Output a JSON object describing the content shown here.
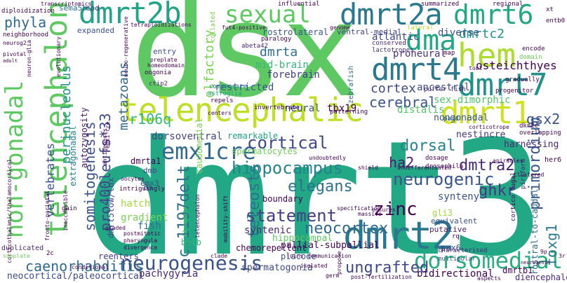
{
  "words": [
    {
      "text": "dmrt3",
      "color": "#22a884"
    },
    {
      "text": "dsx",
      "color": "#5ec962"
    },
    {
      "text": "telencephalic",
      "color": "#bddf26"
    },
    {
      "text": "dmrt2b",
      "color": "#20a386"
    },
    {
      "text": "dmrt2a",
      "color": "#2a788e"
    },
    {
      "text": "dmrt4",
      "color": "#2a788e"
    },
    {
      "text": "dmrt7",
      "color": "#21918c"
    },
    {
      "text": "dmrt1",
      "color": "#cde11d"
    },
    {
      "text": "dmrt2",
      "color": "#2a788e"
    },
    {
      "text": "dmrt6",
      "color": "#22a884"
    },
    {
      "text": "hem",
      "color": "#addc30"
    },
    {
      "text": "dma",
      "color": "#22a884"
    },
    {
      "text": "sexual",
      "color": "#5ec962"
    },
    {
      "text": "telencephalon",
      "color": "#5ec962"
    },
    {
      "text": "non-gonadal",
      "color": "#5ec962"
    },
    {
      "text": "emx1cre",
      "color": "#31688e"
    },
    {
      "text": "neurogenesis",
      "color": "#3b528b"
    },
    {
      "text": "dorsomedial",
      "color": "#29af7f"
    },
    {
      "text": "caenorhabditis",
      "color": "#31688e"
    },
    {
      "text": "hippocampus",
      "color": "#26828e"
    },
    {
      "text": "cortical",
      "color": "#3e4989"
    },
    {
      "text": "dorsal",
      "color": "#26828e"
    },
    {
      "text": "ungrafted",
      "color": "#3e4989"
    },
    {
      "text": "zinc",
      "color": "#440154"
    },
    {
      "text": "statement",
      "color": "#433e85"
    },
    {
      "text": "neurogenic",
      "color": "#39568c"
    },
    {
      "text": "elegans",
      "color": "#2c728e"
    },
    {
      "text": "teleosts",
      "color": "#2c728e"
    },
    {
      "text": "neocortex",
      "color": "#31688e"
    },
    {
      "text": "c.1197delt",
      "color": "#2d708e"
    },
    {
      "text": "primordium",
      "color": "#39568c"
    },
    {
      "text": "dmtra2",
      "color": "#482878"
    },
    {
      "text": "ghkr",
      "color": "#443983"
    },
    {
      "text": "gsx2",
      "color": "#3b528b"
    },
    {
      "text": "foxg1",
      "color": "#2a788e"
    },
    {
      "text": "cerebral",
      "color": "#3b528b"
    },
    {
      "text": "cortex",
      "color": "#3e4989"
    },
    {
      "text": "ha2",
      "color": "#481f70"
    },
    {
      "text": "pro400leufs*33",
      "color": "#3e4989"
    },
    {
      "text": "somitogenesis",
      "color": "#3b528b"
    },
    {
      "text": "metazoans",
      "color": "#31688e"
    },
    {
      "text": "olfactory",
      "color": "#7ad151"
    },
    {
      "text": "r106q",
      "color": "#35b779"
    },
    {
      "text": "vertebrates",
      "color": "#3b528b"
    },
    {
      "text": "perinucleolus",
      "color": "#21918c"
    },
    {
      "text": "phyla",
      "color": "#31688e"
    },
    {
      "text": "dmrta",
      "color": "#2d708e"
    },
    {
      "text": "dmrtc2",
      "color": "#21918c"
    },
    {
      "text": "restricted",
      "color": "#3b528b"
    },
    {
      "text": "mid-brain",
      "color": "#35b779"
    },
    {
      "text": "forebrain",
      "color": "#433e85"
    },
    {
      "text": "osteichthyes",
      "color": "#440154"
    },
    {
      "text": "proneural",
      "color": "#46327e"
    },
    {
      "text": "atlantic",
      "color": "#3e4989"
    },
    {
      "text": "diverse",
      "color": "#3b528b"
    },
    {
      "text": "ancestral",
      "color": "#3b528b"
    },
    {
      "text": "sex-dimorphic",
      "color": "#52c569"
    },
    {
      "text": "nongonadal",
      "color": "#3b528b"
    },
    {
      "text": "harnessing",
      "color": "#482878"
    },
    {
      "text": "nestincre",
      "color": "#46327e"
    },
    {
      "text": "tbx19",
      "color": "#440154"
    },
    {
      "text": "neural",
      "color": "#3b528b"
    },
    {
      "text": "distalis",
      "color": "#52c569"
    },
    {
      "text": "dorsoventral",
      "color": "#414487"
    },
    {
      "text": "remarkable",
      "color": "#1f9e89"
    },
    {
      "text": "dmrta1",
      "color": "#440154"
    },
    {
      "text": "spermatocytes",
      "color": "#6ece58"
    },
    {
      "text": "gradient",
      "color": "#7ad151"
    },
    {
      "text": "fish",
      "color": "#2d708e"
    },
    {
      "text": "hatch",
      "color": "#a0da39"
    },
    {
      "text": "autozygosity",
      "color": "#48186a"
    },
    {
      "text": "syntenic",
      "color": "#482878"
    },
    {
      "text": "pallial-subpallial",
      "color": "#440154"
    },
    {
      "text": "hippocampal",
      "color": "#5ec962"
    },
    {
      "text": "boundary",
      "color": "#440154"
    },
    {
      "text": "synteny",
      "color": "#3b528b"
    },
    {
      "text": "chemorepellent",
      "color": "#440154"
    },
    {
      "text": "placode",
      "color": "#3b528b"
    },
    {
      "text": "bulb",
      "color": "#35b779"
    },
    {
      "text": "reenters",
      "color": "#433e85"
    },
    {
      "text": "spermatogonia",
      "color": "#3e4989"
    },
    {
      "text": "pachygyria",
      "color": "#482878"
    },
    {
      "text": "bidirectional",
      "color": "#440154"
    },
    {
      "text": "neocortical/paleocortical",
      "color": "#3e4989"
    },
    {
      "text": "rostral-to-caudal",
      "color": "#31688e"
    },
    {
      "text": "dmrtb1",
      "color": "#440154"
    },
    {
      "text": "diencephalon",
      "color": "#482878"
    },
    {
      "text": "pax6",
      "color": "#3e4989"
    },
    {
      "text": "gli3",
      "color": "#a0da39"
    },
    {
      "text": "equivalent",
      "color": "#3b528b"
    },
    {
      "text": "putative",
      "color": "#481f70"
    },
    {
      "text": "emx3",
      "color": "#3b528b"
    },
    {
      "text": "dmb",
      "color": "#3b528b"
    },
    {
      "text": "8a",
      "color": "#3b528b"
    },
    {
      "text": "dmrt5low/lox",
      "color": "#3e4989"
    },
    {
      "text": "extragonadal",
      "color": "#26828e"
    },
    {
      "text": "duplicated",
      "color": "#481f70"
    },
    {
      "text": "entry",
      "color": "#3b528b"
    },
    {
      "text": "expanded",
      "color": "#3b528b"
    },
    {
      "text": "sema5b",
      "color": "#2d708e"
    },
    {
      "text": "cod",
      "color": "#46327e"
    },
    {
      "text": "neighborhood",
      "color": "#440154"
    },
    {
      "text": "rostrolateral",
      "color": "#3b528b"
    },
    {
      "text": "ventral-medial",
      "color": "#414487"
    },
    {
      "text": "paralogy",
      "color": "#440154"
    },
    {
      "text": "lateral",
      "color": "#b5de2b"
    },
    {
      "text": "conserved",
      "color": "#482878"
    },
    {
      "text": "lactotropes",
      "color": "#46327e"
    },
    {
      "text": "caudomedial",
      "color": "#7ad151"
    },
    {
      "text": "compensate",
      "color": "#26828e"
    },
    {
      "text": "astroglia",
      "color": "#1f9e89"
    },
    {
      "text": "zebrafish",
      "color": "#31688e"
    },
    {
      "text": "puffer fish",
      "color": "#482878"
    },
    {
      "text": "characterised",
      "color": "#482878"
    },
    {
      "text": "multipolar",
      "color": "#3b528b"
    },
    {
      "text": "cortico fugal",
      "color": "#440154"
    },
    {
      "text": "piriform",
      "color": "#481f70"
    },
    {
      "text": "dosage",
      "color": "#440154"
    },
    {
      "text": "drosophila",
      "color": "#440154"
    },
    {
      "text": "paid",
      "color": "#31688e"
    },
    {
      "text": "dkn2c",
      "color": "#440154"
    },
    {
      "text": "her6",
      "color": "#440154"
    },
    {
      "text": "entb0",
      "color": "#440154"
    },
    {
      "text": "regional",
      "color": "#440154"
    },
    {
      "text": "xt",
      "color": "#440154"
    },
    {
      "text": "encode",
      "color": "#440154"
    },
    {
      "text": "domain",
      "color": "#6ece58"
    },
    {
      "text": "ctip2",
      "color": "#482878"
    },
    {
      "text": "abeta42",
      "color": "#482878"
    },
    {
      "text": "oogonia",
      "color": "#440154"
    },
    {
      "text": "genome",
      "color": "#440154"
    },
    {
      "text": "influential",
      "color": "#440154"
    },
    {
      "text": "summarized",
      "color": "#440154"
    },
    {
      "text": "transcriptomics",
      "color": "#440154"
    },
    {
      "text": "diploidization",
      "color": "#440154"
    },
    {
      "text": "tetraploidizations",
      "color": "#440154"
    },
    {
      "text": "collated",
      "color": "#7ad151"
    },
    {
      "text": "fut4-positive",
      "color": "#440154"
    },
    {
      "text": "neurog2",
      "color": "#440154"
    },
    {
      "text": "pivotal",
      "color": "#440154"
    },
    {
      "text": "adult",
      "color": "#440154"
    },
    {
      "text": "neuron-glia",
      "color": "#440154"
    },
    {
      "text": "evolutionary",
      "color": "#440154"
    },
    {
      "text": "preplate",
      "color": "#440154"
    },
    {
      "text": "homeodomain",
      "color": "#440154"
    },
    {
      "text": "neuro-regenerative",
      "color": "#440154"
    },
    {
      "text": "repels",
      "color": "#440154"
    },
    {
      "text": "invertebrate",
      "color": "#440154"
    },
    {
      "text": "patterning",
      "color": "#440154"
    },
    {
      "text": "centers",
      "color": "#440154"
    },
    {
      "text": "map",
      "color": "#440154"
    },
    {
      "text": "tool",
      "color": "#440154"
    },
    {
      "text": "progenitor",
      "color": "#440154"
    },
    {
      "text": "gradually",
      "color": "#440154"
    },
    {
      "text": "corticotrope",
      "color": "#440154"
    },
    {
      "text": "overlapping",
      "color": "#440154"
    },
    {
      "text": "undifferentiated",
      "color": "#440154"
    },
    {
      "text": "shield",
      "color": "#440154"
    },
    {
      "text": "undoubtedly",
      "color": "#440154"
    },
    {
      "text": "specification",
      "color": "#440154"
    },
    {
      "text": "ensures",
      "color": "#440154"
    },
    {
      "text": "massive",
      "color": "#440154"
    },
    {
      "text": "apiracles",
      "color": "#440154"
    },
    {
      "text": "clustered",
      "color": "#440154"
    },
    {
      "text": "neurogenin",
      "color": "#440154"
    },
    {
      "text": "9p",
      "color": "#440154"
    },
    {
      "text": "3r",
      "color": "#440154"
    },
    {
      "text": "aspects",
      "color": "#440154"
    },
    {
      "text": "intriguingly",
      "color": "#440154"
    },
    {
      "text": "oocytes",
      "color": "#440154"
    },
    {
      "text": "emx1-cre",
      "color": "#440154"
    },
    {
      "text": "antigenesis",
      "color": "#440154"
    },
    {
      "text": "gain",
      "color": "#440154"
    },
    {
      "text": "postmitotic",
      "color": "#440154"
    },
    {
      "text": "pharyngula",
      "color": "#440154"
    },
    {
      "text": "divergence",
      "color": "#440154"
    },
    {
      "text": "graded",
      "color": "#440154"
    },
    {
      "text": "inaccessible",
      "color": "#440154"
    },
    {
      "text": "fronto-parietal",
      "color": "#440154"
    },
    {
      "text": "corticothalamic/thalamocortical",
      "color": "#440154"
    },
    {
      "text": "conditional",
      "color": "#440154"
    },
    {
      "text": "subplate",
      "color": "#6ece58"
    },
    {
      "text": "14-somite",
      "color": "#5ec962"
    },
    {
      "text": "isolated",
      "color": "#440154"
    },
    {
      "text": "telencephalon",
      "color": "#440154"
    },
    {
      "text": "mobility-shift",
      "color": "#440154"
    },
    {
      "text": "clade",
      "color": "#440154"
    },
    {
      "text": "joins",
      "color": "#440154"
    },
    {
      "text": "communication",
      "color": "#440154"
    },
    {
      "text": "propose",
      "color": "#440154"
    },
    {
      "text": "germ",
      "color": "#440154"
    },
    {
      "text": "post-fertilization",
      "color": "#440154"
    },
    {
      "text": "rq",
      "color": "#440154"
    },
    {
      "text": "2c",
      "color": "#440154"
    }
  ]
}
